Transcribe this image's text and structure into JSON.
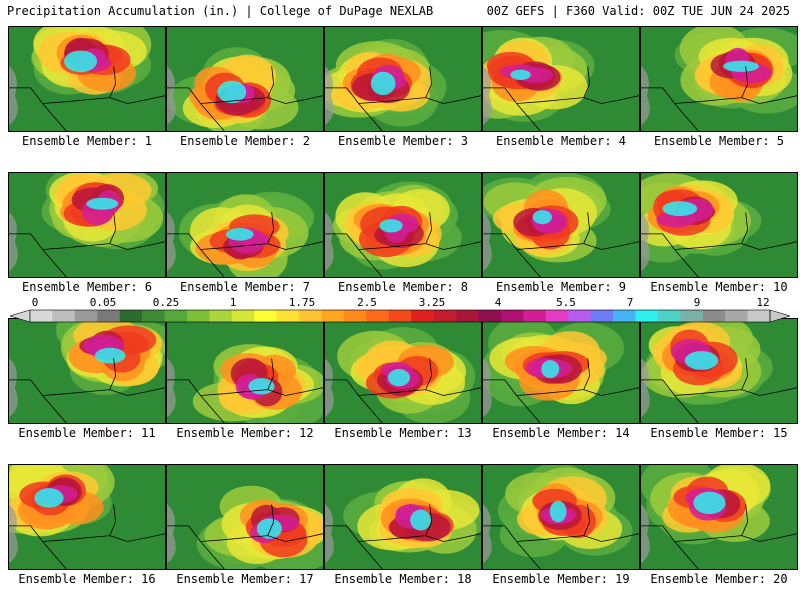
{
  "header": {
    "left": "Precipitation Accumulation (in.) | College of DuPage NEXLAB",
    "right": "00Z GEFS | F360 Valid: 00Z TUE JUN 24 2025"
  },
  "panels": [
    {
      "label": "Ensemble Member: 1"
    },
    {
      "label": "Ensemble Member: 2"
    },
    {
      "label": "Ensemble Member: 3"
    },
    {
      "label": "Ensemble Member: 4"
    },
    {
      "label": "Ensemble Member: 5"
    },
    {
      "label": "Ensemble Member: 6"
    },
    {
      "label": "Ensemble Member: 7"
    },
    {
      "label": "Ensemble Member: 8"
    },
    {
      "label": "Ensemble Member: 9"
    },
    {
      "label": "Ensemble Member: 10"
    },
    {
      "label": "Ensemble Member: 11"
    },
    {
      "label": "Ensemble Member: 12"
    },
    {
      "label": "Ensemble Member: 13"
    },
    {
      "label": "Ensemble Member: 14"
    },
    {
      "label": "Ensemble Member: 15"
    },
    {
      "label": "Ensemble Member: 16"
    },
    {
      "label": "Ensemble Member: 17"
    },
    {
      "label": "Ensemble Member: 18"
    },
    {
      "label": "Ensemble Member: 19"
    },
    {
      "label": "Ensemble Member: 20"
    }
  ],
  "colorbar": {
    "tick_labels": [
      "0",
      "0.05",
      "0.25",
      "1",
      "1.75",
      "2.5",
      "3.25",
      "4",
      "5.5",
      "7",
      "9",
      "12"
    ],
    "colors": [
      "#d8d8d8",
      "#bdbdbd",
      "#9a9a9a",
      "#7a7a7a",
      "#2e6b2e",
      "#3f8a34",
      "#55a83c",
      "#7cbf3a",
      "#a9d43c",
      "#d6e53a",
      "#ffff33",
      "#ffe033",
      "#ffc233",
      "#ffa51f",
      "#ff8a1a",
      "#ff6a1a",
      "#f24a1a",
      "#e02020",
      "#c51d2e",
      "#a8163a",
      "#8e1050",
      "#b0106f",
      "#d21e96",
      "#e53bc5",
      "#b65af0",
      "#6f7bf4",
      "#46b3f5",
      "#2ef0f0",
      "#4fd0c8",
      "#7ab0a8",
      "#8c8c8c",
      "#a8a8a8",
      "#c9c9c9"
    ]
  },
  "map_palette": [
    "#2f8a35",
    "#5aad3e",
    "#9ccb3c",
    "#e6e637",
    "#ffc833",
    "#ff8f1f",
    "#ee3b1f",
    "#b8163b",
    "#d21e96",
    "#2ef0f0",
    "#9a9a9a"
  ]
}
